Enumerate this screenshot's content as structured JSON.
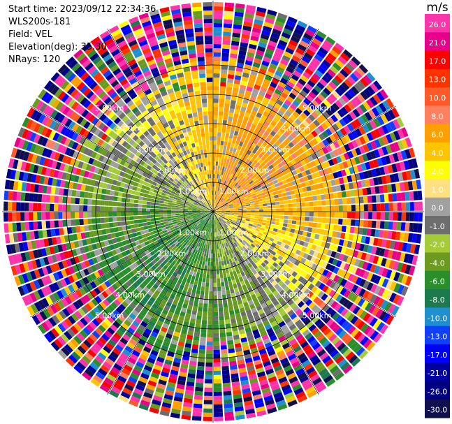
{
  "header": {
    "start_time": "Start time: 2023/09/12 22:34:36",
    "station": "WLS200s-181",
    "field": "Field: VEL",
    "elevation": "Elevation(deg): 35.30",
    "nrays": "NRays: 120"
  },
  "chart_data": {
    "type": "heatmap",
    "projection": "polar (PPI)",
    "field": "VEL",
    "n_rays": 120,
    "range_rings_km": [
      1,
      2,
      3,
      4,
      5
    ],
    "ring_labels": [
      "1.00km",
      "2.00km",
      "3.00km",
      "4.00km",
      "5.00km"
    ],
    "spokes_deg": [
      0,
      30,
      60,
      90,
      120,
      150,
      180,
      210,
      240,
      270,
      300,
      330
    ],
    "colorbar": {
      "unit": "m/s",
      "tick_labels": [
        "26.0",
        "21.0",
        "17.0",
        "13.0",
        "10.0",
        "8.0",
        "6.0",
        "4.0",
        "2.0",
        "1.0",
        "0.0",
        "-1.0",
        "-2.0",
        "-4.0",
        "-6.0",
        "-8.0",
        "-10.0",
        "-13.0",
        "-17.0",
        "-21.0",
        "-26.0",
        "-30.0"
      ],
      "colors": [
        "#ff33aa",
        "#e8008a",
        "#ff0000",
        "#ff3300",
        "#ff5a28",
        "#ff8060",
        "#ffa000",
        "#ffc400",
        "#ffff00",
        "#ffe080",
        "#a0a0a0",
        "#6e6e6e",
        "#a4cc38",
        "#6a9a20",
        "#2a8f2a",
        "#1d7a50",
        "#1e90d0",
        "#1040ff",
        "#0000ff",
        "#0000a0",
        "#000080",
        "#101050"
      ]
    },
    "notes": "Velocity field: positive (yellow/orange) toward upper-right, negative (green) toward lower-left, gray near-zero; noisy multicolor speckle at far ranges."
  }
}
